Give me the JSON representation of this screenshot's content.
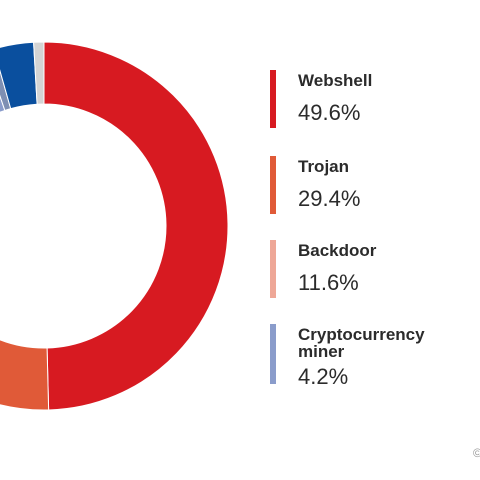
{
  "chart_data": {
    "type": "pie",
    "variant": "donut",
    "title": "",
    "categories": [
      "Webshell",
      "Trojan",
      "Backdoor",
      "Cryptocurrency miner",
      "",
      "",
      ""
    ],
    "values": [
      49.6,
      29.4,
      11.6,
      4.2,
      0.8,
      3.5,
      0.9
    ],
    "colors": [
      "#d71a21",
      "#e05a38",
      "#eea797",
      "#8a9ccb",
      "#7e8fb3",
      "#0a4f9e",
      "#d4d4d4"
    ],
    "legend": [
      {
        "label": "Webshell",
        "value": "49.6%",
        "color": "#d71a21"
      },
      {
        "label": "Trojan",
        "value": "29.4%",
        "color": "#e05a38"
      },
      {
        "label": "Backdoor",
        "value": "11.6%",
        "color": "#eea797"
      },
      {
        "label": "Cryptocurrency miner",
        "value": "4.2%",
        "color": "#8a9ccb"
      }
    ],
    "legend_position": "right"
  }
}
